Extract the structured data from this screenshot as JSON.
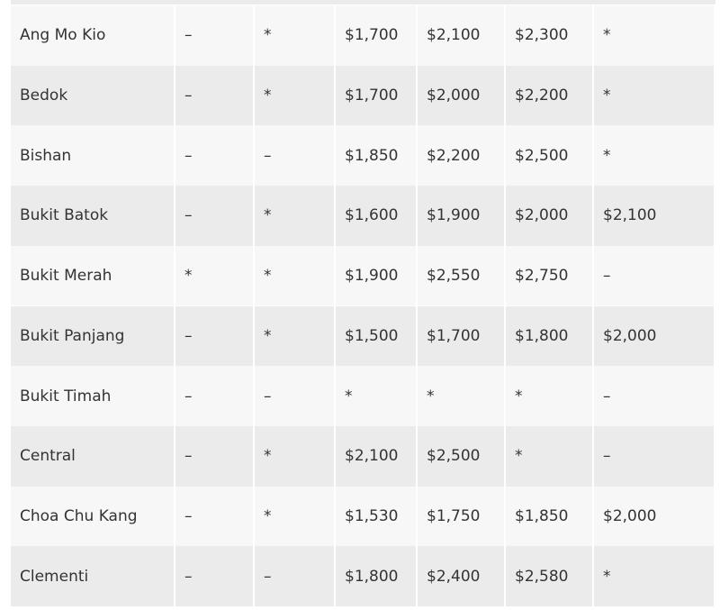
{
  "table": {
    "rows": [
      [
        "Ang Mo Kio",
        "–",
        "*",
        "$1,700",
        "$2,100",
        "$2,300",
        "*"
      ],
      [
        "Bedok",
        "–",
        "*",
        "$1,700",
        "$2,000",
        "$2,200",
        "*"
      ],
      [
        "Bishan",
        "–",
        "–",
        "$1,850",
        "$2,200",
        "$2,500",
        "*"
      ],
      [
        "Bukit Batok",
        "–",
        "*",
        "$1,600",
        "$1,900",
        "$2,000",
        "$2,100"
      ],
      [
        "Bukit Merah",
        "*",
        "*",
        "$1,900",
        "$2,550",
        "$2,750",
        "–"
      ],
      [
        "Bukit Panjang",
        "–",
        "*",
        "$1,500",
        "$1,700",
        "$1,800",
        "$2,000"
      ],
      [
        "Bukit Timah",
        "–",
        "–",
        "*",
        "*",
        "*",
        "–"
      ],
      [
        "Central",
        "–",
        "*",
        "$2,100",
        "$2,500",
        "*",
        "–"
      ],
      [
        "Choa Chu Kang",
        "–",
        "*",
        "$1,530",
        "$1,750",
        "$1,850",
        "$2,000"
      ],
      [
        "Clementi",
        "–",
        "–",
        "$1,800",
        "$2,400",
        "$2,580",
        "*"
      ]
    ]
  }
}
